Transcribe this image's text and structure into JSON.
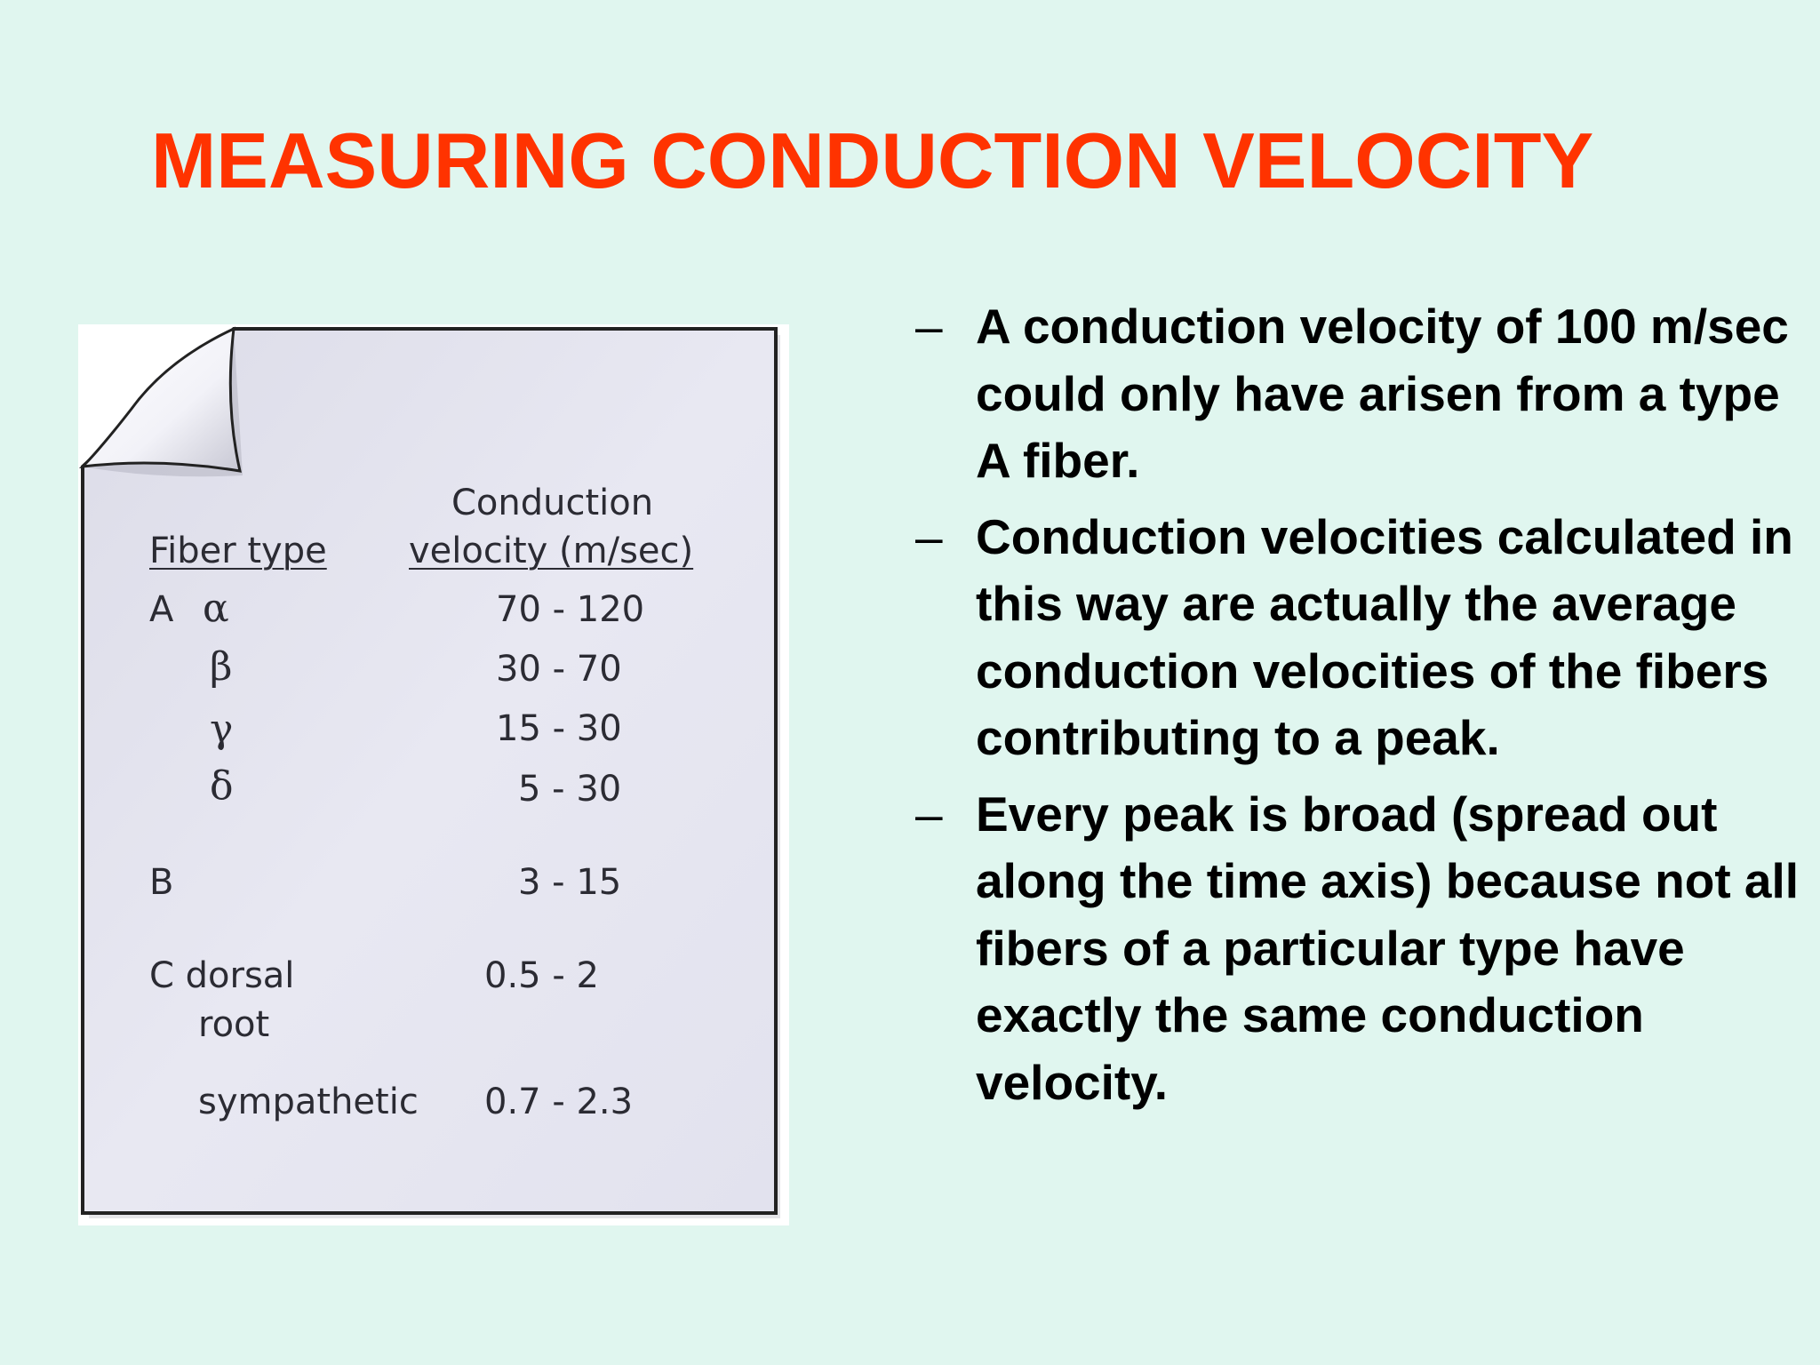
{
  "slide": {
    "title": "MEASURING CONDUCTION VELOCITY",
    "title_color": "#ff3300",
    "background_color": "#e0f6ef"
  },
  "table": {
    "header_fiber_type": "Fiber type",
    "header_velocity_line1": "Conduction",
    "header_velocity_line2": "velocity (m/sec)",
    "rows": [
      {
        "group": "A",
        "subtype": "α",
        "velocity": "70 - 120"
      },
      {
        "group": "",
        "subtype": "β",
        "velocity": "30 - 70"
      },
      {
        "group": "",
        "subtype": "γ",
        "velocity": "15 - 30"
      },
      {
        "group": "",
        "subtype": "δ",
        "velocity": "5 - 30"
      },
      {
        "group": "B",
        "subtype": "",
        "velocity": "3 - 15"
      },
      {
        "group": "C dorsal",
        "subtype": "root",
        "velocity": "0.5 - 2"
      },
      {
        "group": "",
        "subtype": "sympathetic",
        "velocity": "0.7 - 2.3"
      }
    ]
  },
  "bullets": [
    {
      "marker": "–",
      "text": "A conduction velocity of 100 m/sec could only have arisen from a type A  fiber."
    },
    {
      "marker": "–",
      "text": "Conduction velocities calculated in this way are actually the average conduction velocities of the fibers contributing to a peak."
    },
    {
      "marker": "–",
      "text": "Every peak is broad (spread out along the time axis) because not all fibers of a particular type have exactly the same conduction velocity."
    }
  ]
}
